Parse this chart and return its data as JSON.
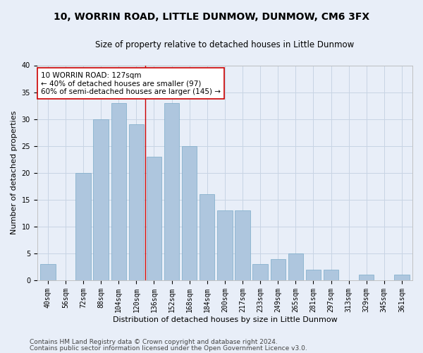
{
  "title": "10, WORRIN ROAD, LITTLE DUNMOW, DUNMOW, CM6 3FX",
  "subtitle": "Size of property relative to detached houses in Little Dunmow",
  "xlabel": "Distribution of detached houses by size in Little Dunmow",
  "ylabel": "Number of detached properties",
  "categories": [
    "40sqm",
    "56sqm",
    "72sqm",
    "88sqm",
    "104sqm",
    "120sqm",
    "136sqm",
    "152sqm",
    "168sqm",
    "184sqm",
    "200sqm",
    "217sqm",
    "233sqm",
    "249sqm",
    "265sqm",
    "281sqm",
    "297sqm",
    "313sqm",
    "329sqm",
    "345sqm",
    "361sqm"
  ],
  "values": [
    3,
    0,
    20,
    30,
    33,
    29,
    23,
    33,
    25,
    16,
    13,
    13,
    3,
    4,
    5,
    2,
    2,
    0,
    1,
    0,
    1
  ],
  "bar_color": "#aec6de",
  "bar_edge_color": "#7aaac8",
  "grid_color": "#c8d4e4",
  "bg_color": "#e8eef8",
  "vline_x": 5.5,
  "vline_color": "#cc0000",
  "annotation_text": "10 WORRIN ROAD: 127sqm\n← 40% of detached houses are smaller (97)\n60% of semi-detached houses are larger (145) →",
  "annotation_box_color": "#ffffff",
  "annotation_border_color": "#cc0000",
  "ylim": [
    0,
    40
  ],
  "yticks": [
    0,
    5,
    10,
    15,
    20,
    25,
    30,
    35,
    40
  ],
  "footer1": "Contains HM Land Registry data © Crown copyright and database right 2024.",
  "footer2": "Contains public sector information licensed under the Open Government Licence v3.0.",
  "title_fontsize": 10,
  "subtitle_fontsize": 8.5,
  "axis_label_fontsize": 8,
  "tick_fontsize": 7,
  "annotation_fontsize": 7.5,
  "footer_fontsize": 6.5
}
